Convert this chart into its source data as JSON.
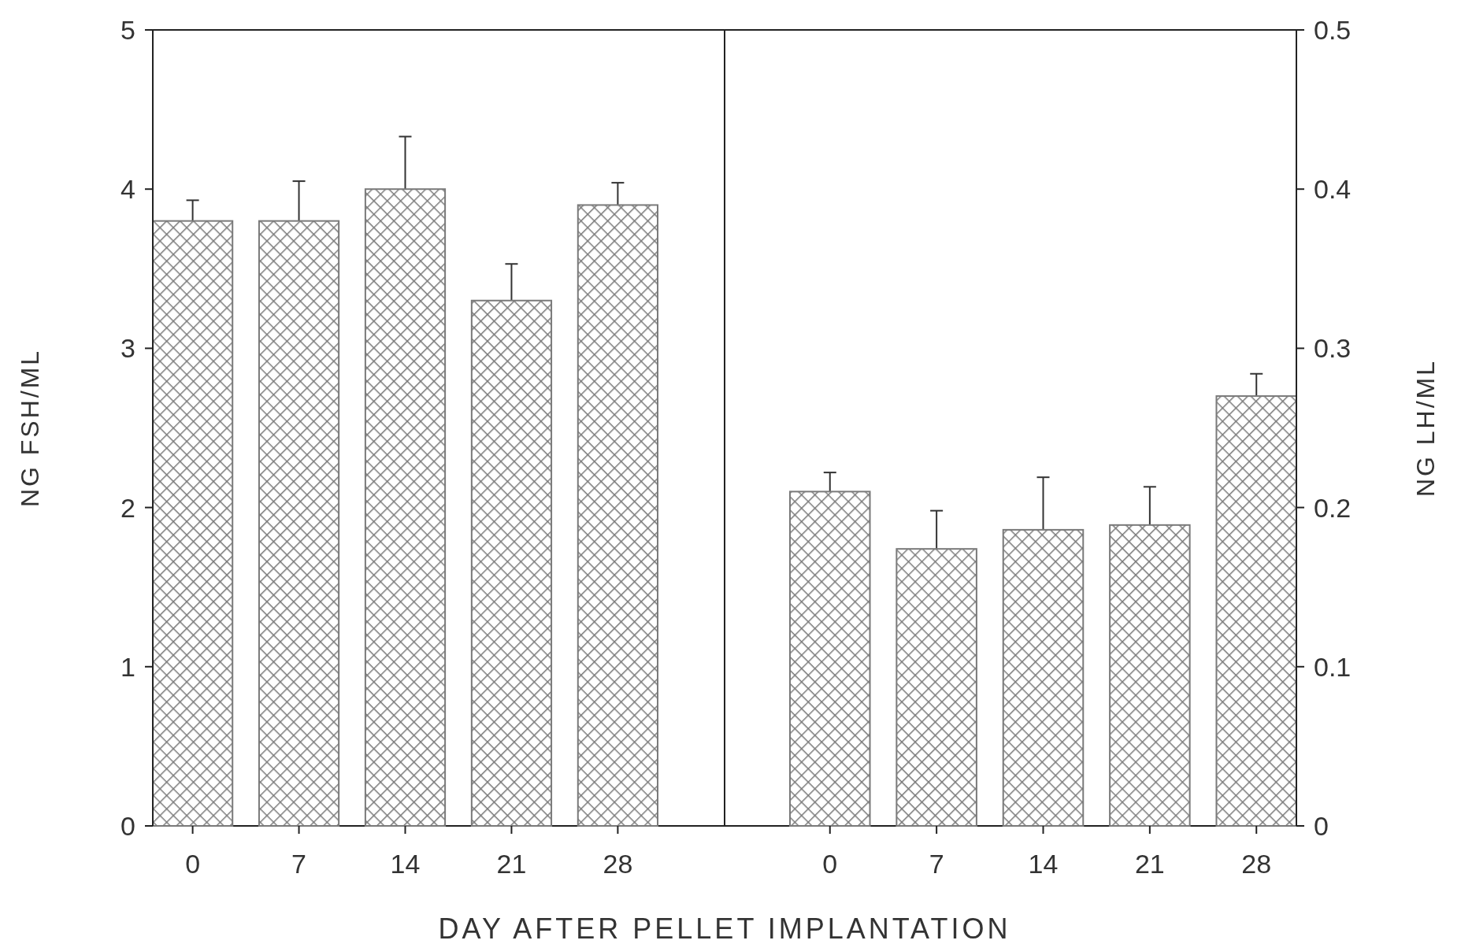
{
  "chart_data": [
    {
      "type": "bar",
      "ylabel": "NG FSH/ML",
      "xlabel": "DAY AFTER PELLET IMPLANTATION",
      "categories": [
        "0",
        "7",
        "14",
        "21",
        "28"
      ],
      "ylim": [
        0,
        5
      ],
      "yticks": [
        0,
        1,
        2,
        3,
        4,
        5
      ],
      "series": [
        {
          "color": "#7a7a7a",
          "values": [
            3.8,
            3.8,
            4.0,
            3.3,
            3.9
          ],
          "errors": [
            0.13,
            0.25,
            0.33,
            0.23,
            0.14
          ]
        }
      ]
    },
    {
      "type": "bar",
      "y2label": "NG LH/ML",
      "categories": [
        "0",
        "7",
        "14",
        "21",
        "28"
      ],
      "y2lim": [
        0,
        0.5
      ],
      "y2ticks": [
        0,
        0.1,
        0.2,
        0.3,
        0.4,
        0.5
      ],
      "series": [
        {
          "color": "#7a7a7a",
          "axis": "y2",
          "values": [
            0.21,
            0.174,
            0.186,
            0.189,
            0.27
          ],
          "errors": [
            0.012,
            0.024,
            0.033,
            0.024,
            0.014
          ]
        }
      ]
    }
  ]
}
